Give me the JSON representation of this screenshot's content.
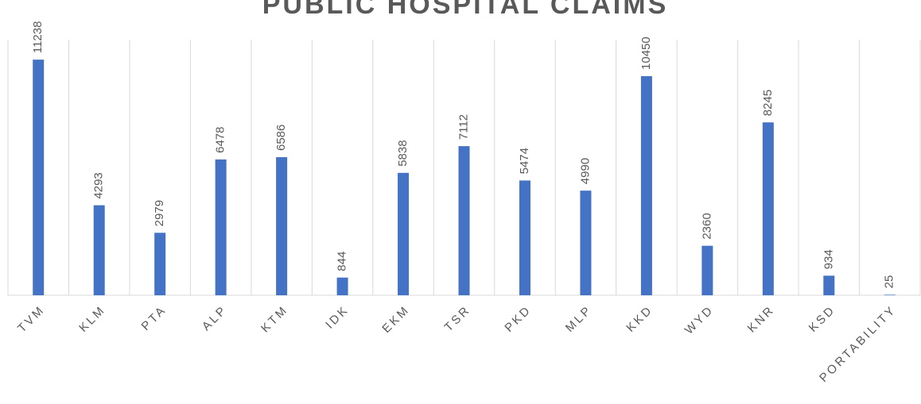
{
  "chart_data": {
    "type": "bar",
    "title": "PUBLIC HOSPITAL CLAIMS",
    "categories": [
      "TVM",
      "KLM",
      "PTA",
      "ALP",
      "KTM",
      "IDK",
      "EKM",
      "TSR",
      "PKD",
      "MLP",
      "KKD",
      "WYD",
      "KNR",
      "KSD",
      "PORTABILITY"
    ],
    "values": [
      11238,
      4293,
      2979,
      6478,
      6586,
      844,
      5838,
      7112,
      5474,
      4990,
      10450,
      2360,
      8245,
      934,
      25
    ],
    "color": "#4472c4",
    "ylim": [
      0,
      12000
    ]
  }
}
